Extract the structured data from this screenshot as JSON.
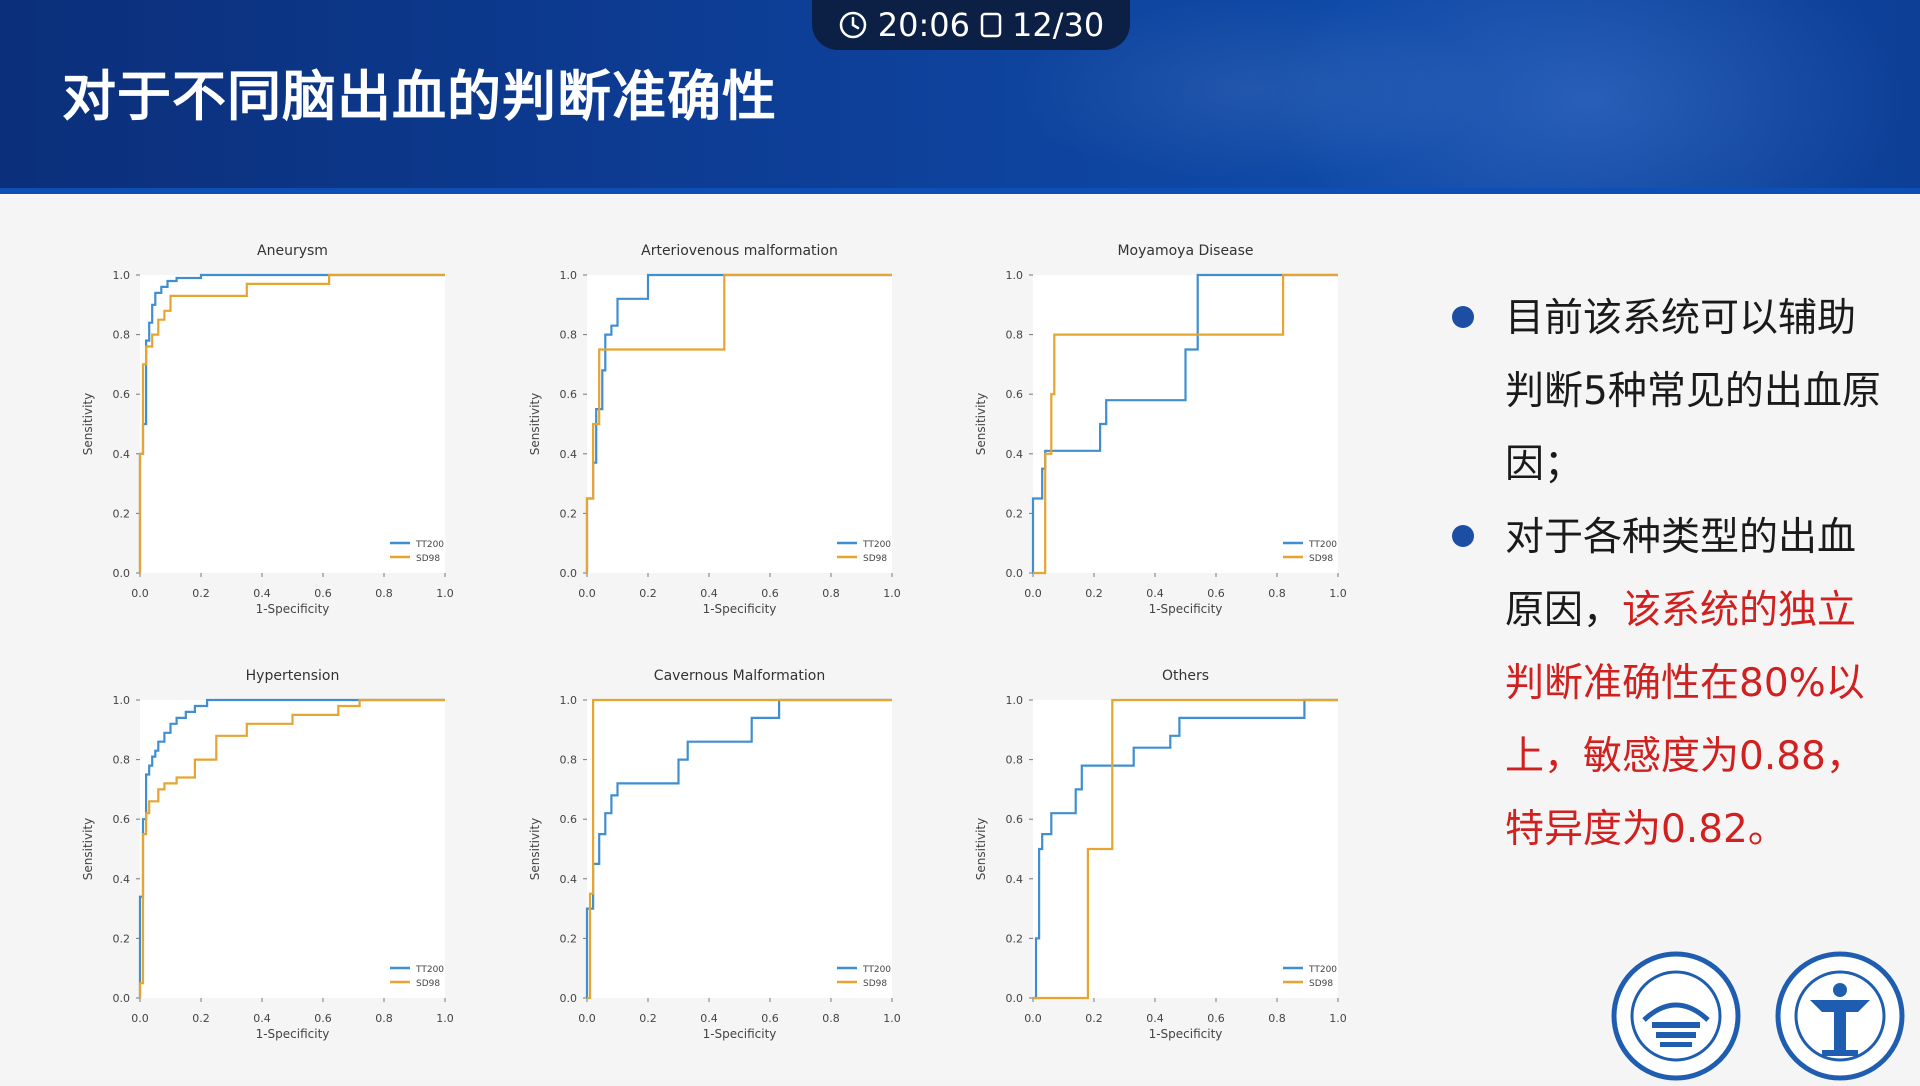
{
  "status": {
    "time": "20:06",
    "page": "12/30"
  },
  "title": "对于不同脑出血的判断准确性",
  "bullets": [
    {
      "text": "目前该系统可以辅助判断5种常见的出血原因；",
      "highlight": ""
    },
    {
      "text": "对于各种类型的出血原因，",
      "highlight": "该系统的独立判断准确性在80%以上，敏感度为0.88，特异度为0.82。"
    }
  ],
  "colors": {
    "tt200": "#3f8fd0",
    "sd98": "#e6a431",
    "header": "#0d3c93",
    "bullet": "#1c4ea4",
    "highlight": "#d0201f"
  },
  "logos": [
    "seal-logo-hospital",
    "seal-logo-university"
  ],
  "chart_data": [
    {
      "type": "line",
      "title": "Aneurysm",
      "xlabel": "1-Specificity",
      "ylabel": "Sensitivity",
      "xlim": [
        0,
        1
      ],
      "ylim": [
        0,
        1
      ],
      "xticks": [
        "0.0",
        "0.2",
        "0.4",
        "0.6",
        "0.8",
        "1.0"
      ],
      "yticks": [
        "0.0",
        "0.2",
        "0.4",
        "0.6",
        "0.8",
        "1.0"
      ],
      "legend_position": "lower-right",
      "series": [
        {
          "name": "TT200",
          "x": [
            0,
            0,
            0.01,
            0.01,
            0.02,
            0.02,
            0.03,
            0.03,
            0.04,
            0.04,
            0.05,
            0.05,
            0.07,
            0.07,
            0.09,
            0.09,
            0.12,
            0.12,
            0.2,
            0.2,
            1.0
          ],
          "y": [
            0,
            0.4,
            0.4,
            0.5,
            0.5,
            0.78,
            0.78,
            0.84,
            0.84,
            0.9,
            0.9,
            0.94,
            0.94,
            0.96,
            0.96,
            0.98,
            0.98,
            0.99,
            0.99,
            1.0,
            1.0
          ]
        },
        {
          "name": "SD98",
          "x": [
            0,
            0,
            0.01,
            0.01,
            0.02,
            0.02,
            0.04,
            0.04,
            0.06,
            0.06,
            0.08,
            0.08,
            0.1,
            0.1,
            0.35,
            0.35,
            0.62,
            0.62,
            1.0
          ],
          "y": [
            0,
            0.4,
            0.4,
            0.7,
            0.7,
            0.76,
            0.76,
            0.8,
            0.8,
            0.85,
            0.85,
            0.88,
            0.88,
            0.93,
            0.93,
            0.97,
            0.97,
            1.0,
            1.0
          ]
        }
      ]
    },
    {
      "type": "line",
      "title": "Arteriovenous malformation",
      "xlabel": "1-Specificity",
      "ylabel": "Sensitivity",
      "xlim": [
        0,
        1
      ],
      "ylim": [
        0,
        1
      ],
      "xticks": [
        "0.0",
        "0.2",
        "0.4",
        "0.6",
        "0.8",
        "1.0"
      ],
      "yticks": [
        "0.0",
        "0.2",
        "0.4",
        "0.6",
        "0.8",
        "1.0"
      ],
      "legend_position": "lower-right",
      "series": [
        {
          "name": "TT200",
          "x": [
            0,
            0,
            0.02,
            0.02,
            0.03,
            0.03,
            0.05,
            0.05,
            0.06,
            0.06,
            0.08,
            0.08,
            0.1,
            0.1,
            0.2,
            0.2,
            1.0
          ],
          "y": [
            0,
            0.25,
            0.25,
            0.37,
            0.37,
            0.55,
            0.55,
            0.68,
            0.68,
            0.8,
            0.8,
            0.83,
            0.83,
            0.92,
            0.92,
            1.0,
            1.0
          ]
        },
        {
          "name": "SD98",
          "x": [
            0,
            0,
            0.02,
            0.02,
            0.04,
            0.04,
            0.45,
            0.45,
            1.0
          ],
          "y": [
            0,
            0.25,
            0.25,
            0.5,
            0.5,
            0.75,
            0.75,
            1.0,
            1.0
          ]
        }
      ]
    },
    {
      "type": "line",
      "title": "Moyamoya Disease",
      "xlabel": "1-Specificity",
      "ylabel": "Sensitivity",
      "xlim": [
        0,
        1
      ],
      "ylim": [
        0,
        1
      ],
      "xticks": [
        "0.0",
        "0.2",
        "0.4",
        "0.6",
        "0.8",
        "1.0"
      ],
      "yticks": [
        "0.0",
        "0.2",
        "0.4",
        "0.6",
        "0.8",
        "1.0"
      ],
      "legend_position": "lower-right",
      "series": [
        {
          "name": "TT200",
          "x": [
            0,
            0,
            0.03,
            0.03,
            0.04,
            0.04,
            0.06,
            0.06,
            0.22,
            0.22,
            0.24,
            0.24,
            0.42,
            0.42,
            0.5,
            0.5,
            0.54,
            0.54,
            0.82,
            0.82,
            1.0
          ],
          "y": [
            0,
            0.25,
            0.25,
            0.35,
            0.35,
            0.41,
            0.41,
            0.41,
            0.41,
            0.5,
            0.5,
            0.58,
            0.58,
            0.58,
            0.58,
            0.75,
            0.75,
            1.0,
            1.0,
            1.0,
            1.0
          ]
        },
        {
          "name": "SD98",
          "x": [
            0,
            0.04,
            0.04,
            0.06,
            0.06,
            0.07,
            0.07,
            0.82,
            0.82,
            1.0
          ],
          "y": [
            0,
            0,
            0.4,
            0.4,
            0.6,
            0.6,
            0.8,
            0.8,
            1.0,
            1.0
          ]
        }
      ]
    },
    {
      "type": "line",
      "title": "Hypertension",
      "xlabel": "1-Specificity",
      "ylabel": "Sensitivity",
      "xlim": [
        0,
        1
      ],
      "ylim": [
        0,
        1
      ],
      "xticks": [
        "0.0",
        "0.2",
        "0.4",
        "0.6",
        "0.8",
        "1.0"
      ],
      "yticks": [
        "0.0",
        "0.2",
        "0.4",
        "0.6",
        "0.8",
        "1.0"
      ],
      "legend_position": "lower-right",
      "series": [
        {
          "name": "TT200",
          "x": [
            0,
            0,
            0.01,
            0.01,
            0.02,
            0.02,
            0.03,
            0.03,
            0.04,
            0.04,
            0.05,
            0.05,
            0.06,
            0.06,
            0.08,
            0.08,
            0.1,
            0.1,
            0.12,
            0.12,
            0.15,
            0.15,
            0.18,
            0.18,
            0.22,
            0.22,
            0.3,
            0.3,
            0.72,
            0.72,
            1.0
          ],
          "y": [
            0,
            0.34,
            0.34,
            0.6,
            0.6,
            0.75,
            0.75,
            0.78,
            0.78,
            0.81,
            0.81,
            0.83,
            0.83,
            0.86,
            0.86,
            0.89,
            0.89,
            0.92,
            0.92,
            0.94,
            0.94,
            0.96,
            0.96,
            0.98,
            0.98,
            1.0,
            1.0,
            1.0,
            1.0,
            1.0,
            1.0
          ]
        },
        {
          "name": "SD98",
          "x": [
            0,
            0,
            0.01,
            0.01,
            0.02,
            0.02,
            0.03,
            0.03,
            0.06,
            0.06,
            0.08,
            0.08,
            0.12,
            0.12,
            0.18,
            0.18,
            0.25,
            0.25,
            0.35,
            0.35,
            0.5,
            0.5,
            0.65,
            0.65,
            0.72,
            0.72,
            1.0
          ],
          "y": [
            0,
            0.05,
            0.05,
            0.55,
            0.55,
            0.62,
            0.62,
            0.66,
            0.66,
            0.7,
            0.7,
            0.72,
            0.72,
            0.74,
            0.74,
            0.8,
            0.8,
            0.88,
            0.88,
            0.92,
            0.92,
            0.95,
            0.95,
            0.98,
            0.98,
            1.0,
            1.0
          ]
        }
      ]
    },
    {
      "type": "line",
      "title": "Cavernous Malformation",
      "xlabel": "1-Specificity",
      "ylabel": "Sensitivity",
      "xlim": [
        0,
        1
      ],
      "ylim": [
        0,
        1
      ],
      "xticks": [
        "0.0",
        "0.2",
        "0.4",
        "0.6",
        "0.8",
        "1.0"
      ],
      "yticks": [
        "0.0",
        "0.2",
        "0.4",
        "0.6",
        "0.8",
        "1.0"
      ],
      "legend_position": "lower-right",
      "series": [
        {
          "name": "TT200",
          "x": [
            0,
            0,
            0.02,
            0.02,
            0.04,
            0.04,
            0.06,
            0.06,
            0.08,
            0.08,
            0.1,
            0.1,
            0.12,
            0.12,
            0.3,
            0.3,
            0.33,
            0.33,
            0.54,
            0.54,
            0.63,
            0.63,
            1.0
          ],
          "y": [
            0,
            0.3,
            0.3,
            0.45,
            0.45,
            0.55,
            0.55,
            0.62,
            0.62,
            0.68,
            0.68,
            0.72,
            0.72,
            0.72,
            0.72,
            0.8,
            0.8,
            0.86,
            0.86,
            0.94,
            0.94,
            1.0,
            1.0
          ]
        },
        {
          "name": "SD98",
          "x": [
            0,
            0.01,
            0.01,
            0.02,
            0.02,
            1.0
          ],
          "y": [
            0,
            0,
            0.35,
            0.35,
            1.0,
            1.0
          ]
        }
      ]
    },
    {
      "type": "line",
      "title": "Others",
      "xlabel": "1-Specificity",
      "ylabel": "Sensitivity",
      "xlim": [
        0,
        1
      ],
      "ylim": [
        0,
        1
      ],
      "xticks": [
        "0.0",
        "0.2",
        "0.4",
        "0.6",
        "0.8",
        "1.0"
      ],
      "yticks": [
        "0.0",
        "0.2",
        "0.4",
        "0.6",
        "0.8",
        "1.0"
      ],
      "legend_position": "lower-right",
      "series": [
        {
          "name": "TT200",
          "x": [
            0,
            0.01,
            0.01,
            0.02,
            0.02,
            0.03,
            0.03,
            0.06,
            0.06,
            0.14,
            0.14,
            0.16,
            0.16,
            0.33,
            0.33,
            0.45,
            0.45,
            0.48,
            0.48,
            0.89,
            0.89,
            1.0
          ],
          "y": [
            0,
            0,
            0.2,
            0.2,
            0.5,
            0.5,
            0.55,
            0.55,
            0.62,
            0.62,
            0.7,
            0.7,
            0.78,
            0.78,
            0.84,
            0.84,
            0.88,
            0.88,
            0.94,
            0.94,
            1.0,
            1.0
          ]
        },
        {
          "name": "SD98",
          "x": [
            0,
            0.18,
            0.18,
            0.26,
            0.26,
            1.0
          ],
          "y": [
            0,
            0,
            0.5,
            0.5,
            1.0,
            1.0
          ]
        }
      ]
    }
  ]
}
